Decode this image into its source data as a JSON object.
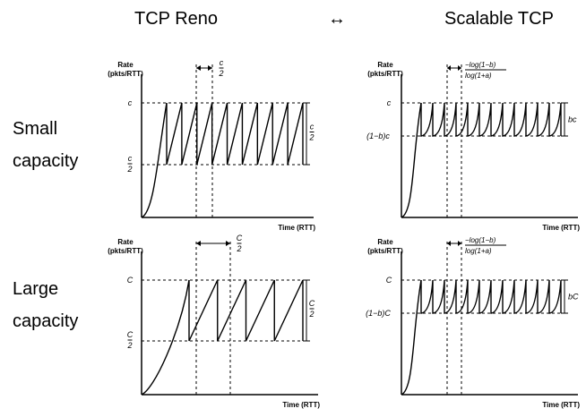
{
  "headers": {
    "left": "TCP Reno",
    "arrow": "↔",
    "right": "Scalable TCP"
  },
  "row_labels": {
    "small": [
      "Small",
      "capacity"
    ],
    "large": [
      "Large",
      "capacity"
    ]
  },
  "panels": [
    {
      "key": "reno_small",
      "y_label": [
        "Rate",
        "(pkts/RTT)"
      ],
      "x_label": "Time (RTT)",
      "top_level": "c",
      "bottom_level": "c/2",
      "gap_annotation": "c/2",
      "range_annotation": "c/2",
      "teeth": 9
    },
    {
      "key": "scalable_small",
      "y_label": [
        "Rate",
        "(pkts/RTT)"
      ],
      "x_label": "Time (RTT)",
      "top_level": "c",
      "bottom_level": "(1−b)c",
      "gap_annotation": [
        "−log(1−b)",
        "log(1+a)"
      ],
      "range_annotation": "bc",
      "teeth": 12
    },
    {
      "key": "reno_large",
      "y_label": [
        "Rate",
        "(pkts/RTT)"
      ],
      "x_label": "Time (RTT)",
      "top_level": "C",
      "bottom_level": "C/2",
      "gap_annotation": "C/2",
      "range_annotation": "C/2",
      "teeth": 4
    },
    {
      "key": "scalable_large",
      "y_label": [
        "Rate",
        "(pkts/RTT)"
      ],
      "x_label": "Time (RTT)",
      "top_level": "C",
      "bottom_level": "(1−b)C",
      "gap_annotation": [
        "−log(1−b)",
        "log(1+a)"
      ],
      "range_annotation": "bC",
      "teeth": 12
    }
  ]
}
